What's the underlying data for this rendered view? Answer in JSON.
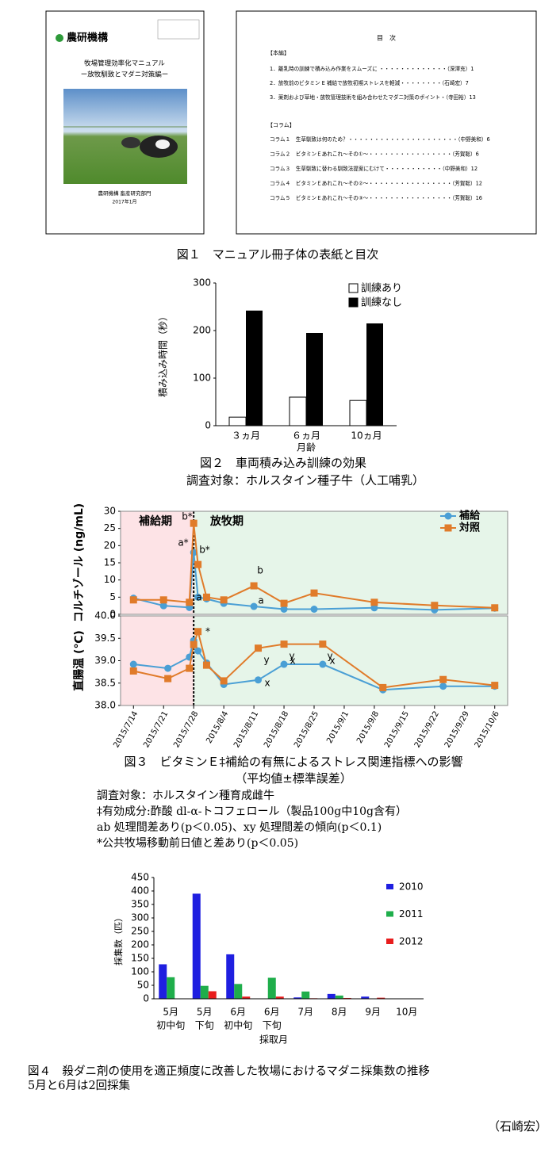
{
  "figure1": {
    "cover": {
      "logo": "農研機構",
      "title": "牧場管理効率化マニュアル",
      "subtitle": "ー放牧馴致とマダニ対策編ー",
      "publisher": "農研機構 畜産研究部門",
      "date": "2017年1月"
    },
    "toc": {
      "heading": "目　次",
      "main_heading": "【本編】",
      "main_items": [
        "1．離乳時の訓練で積み込み作業をスムーズに ・・・・・・・・・・・・・（深澤充）1",
        "2．放牧前のビタミン E 補給で放牧初期ストレスを軽減・・・・・・・・（石崎宏）7",
        "3．薬剤および草地・放牧管理技術を組み合わせたマダニ対策のポイント・（寺田裕）13"
      ],
      "column_heading": "【コラム】",
      "column_items": [
        "コラム１　生草馴致は何のため？・・・・・・・・・・・・・・・・・・・・・（中野美和）6",
        "コラム２　ビタミンＥあれこれ～その①～・・・・・・・・・・・・・・・・（芳賀聡）6",
        "コラム３　生草馴致に替わる馴致法提案にむけて・・・・・・・・・・・（中野美和）12",
        "コラム４　ビタミンＥあれこれ～その②～・・・・・・・・・・・・・・・・（芳賀聡）12",
        "コラム５　ビタミンＥあれこれ～その③～・・・・・・・・・・・・・・・・（芳賀聡）16"
      ]
    },
    "caption": "図１　マニュアル冊子体の表紙と目次"
  },
  "chart_data": [
    {
      "type": "bar",
      "y_label": "積み込み時間（秒）",
      "x_label": "月齢",
      "categories": [
        "３ヵ月",
        "６ヵ月",
        "10ヵ月"
      ],
      "series": [
        {
          "name": "訓練あり",
          "color": "#ffffff",
          "values": [
            18,
            60,
            53
          ]
        },
        {
          "name": "訓練なし",
          "color": "#000000",
          "values": [
            242,
            195,
            215
          ]
        }
      ],
      "ylim": [
        0,
        300
      ],
      "yticks": [
        0,
        100,
        200,
        300
      ],
      "legend": "upper right"
    },
    {
      "type": "line",
      "y_label": "コルチゾール (ng/mL)",
      "x": [
        "2015/7/14",
        "2015/7/21",
        "2015/7/27",
        "2015/7/28",
        "2015/7/29",
        "2015/7/31",
        "2015/8/4",
        "2015/8/11",
        "2015/8/18",
        "2015/8/25",
        "2015/9/8",
        "2015/9/22",
        "2015/10/6"
      ],
      "series": [
        {
          "name": "補給",
          "color": "#4a9fd5",
          "marker": "circle",
          "values": [
            4.7,
            2.5,
            2.0,
            18.0,
            5.0,
            4.5,
            3.2,
            2.3,
            1.5,
            1.5,
            1.9,
            1.3,
            1.8
          ]
        },
        {
          "name": "対照",
          "color": "#e07b2a",
          "marker": "square",
          "values": [
            4.2,
            4.2,
            3.5,
            26.5,
            14.5,
            5.0,
            4.2,
            8.3,
            3.2,
            6.2,
            3.5,
            2.6,
            1.9
          ]
        }
      ],
      "periods": [
        {
          "label": "補給期",
          "start": "2015/7/11",
          "end": "2015/7/28",
          "color": "#fde3e6"
        },
        {
          "label": "放牧期",
          "start": "2015/7/28",
          "end": "2015/10/9",
          "color": "#e6f5e9"
        }
      ],
      "annotations": [
        "b*",
        "a*",
        "b*",
        "a",
        "b",
        "a"
      ],
      "xlim": [
        "2015/7/11",
        "2015/10/9"
      ],
      "ylim": [
        0,
        30
      ],
      "yticks": [
        0,
        5,
        10,
        15,
        20,
        25,
        30
      ],
      "legend": "upper right"
    },
    {
      "type": "line",
      "y_label": "直腸温 (℃)",
      "x": [
        "2015/7/14",
        "2015/7/22",
        "2015/7/27",
        "2015/7/28",
        "2015/7/29",
        "2015/7/31",
        "2015/8/4",
        "2015/8/12",
        "2015/8/18",
        "2015/8/27",
        "2015/9/10",
        "2015/9/24",
        "2015/10/6"
      ],
      "series": [
        {
          "name": "補給",
          "color": "#4a9fd5",
          "marker": "circle",
          "values": [
            38.92,
            38.83,
            39.08,
            39.45,
            39.22,
            38.95,
            38.47,
            38.57,
            38.92,
            38.92,
            38.35,
            38.43,
            38.43
          ]
        },
        {
          "name": "対照",
          "color": "#e07b2a",
          "marker": "square",
          "values": [
            38.77,
            38.6,
            38.83,
            39.36,
            39.65,
            38.9,
            38.55,
            39.28,
            39.37,
            39.37,
            38.4,
            38.58,
            38.45
          ]
        }
      ],
      "periods": [
        {
          "start": "2015/7/11",
          "end": "2015/7/28",
          "color": "#fde3e6"
        },
        {
          "start": "2015/7/28",
          "end": "2015/10/9",
          "color": "#e6f5e9"
        }
      ],
      "annotations": [
        "*",
        "y",
        "y",
        "y",
        "x",
        "x",
        "x"
      ],
      "xlim": [
        "2015/7/11",
        "2015/10/9"
      ],
      "ylim": [
        38,
        40
      ],
      "yticks": [
        {
          "value": 38,
          "label": "38.0"
        },
        38.5,
        {
          "value": 39,
          "label": "39.0"
        },
        39.5,
        {
          "value": 40,
          "label": "40.0"
        }
      ],
      "xticks": [
        "2015/7/14",
        "2015/7/21",
        "2015/7/28",
        "2015/8/4",
        "2015/8/11",
        "2015/8/18",
        "2015/8/25",
        "2015/9/1",
        "2015/9/8",
        "2015/9/15",
        "2015/9/22",
        "2015/9/29",
        "2015/10/6"
      ]
    },
    {
      "type": "bar",
      "y_label": "採集数（匹）",
      "x_label": "採取月",
      "categories": [
        [
          "5月",
          "初中旬"
        ],
        [
          "5月",
          "下旬"
        ],
        [
          "6月",
          "初中旬"
        ],
        [
          "6月",
          "下旬"
        ],
        [
          "7月"
        ],
        [
          "8月"
        ],
        [
          "9月"
        ],
        [
          "10月"
        ]
      ],
      "series": [
        {
          "name": "2010",
          "color": "#1f1fe0",
          "values": [
            128,
            390,
            165,
            0,
            5,
            18,
            8,
            0
          ]
        },
        {
          "name": "2011",
          "color": "#1fae4b",
          "values": [
            80,
            48,
            55,
            78,
            27,
            12,
            0,
            0
          ]
        },
        {
          "name": "2012",
          "color": "#e81d1d",
          "values": [
            0,
            28,
            8,
            8,
            2,
            3,
            4,
            0
          ]
        }
      ],
      "ylim": [
        0,
        450
      ],
      "yticks": [
        0,
        50,
        100,
        150,
        200,
        250,
        300,
        350,
        400,
        450
      ],
      "legend": "right"
    }
  ],
  "figure2_caption": [
    "図２　車両積み込み訓練の効果",
    "調査対象：ホルスタイン種子牛（人工哺乳）"
  ],
  "figure3_caption": [
    "図３　ビタミンＥ‡補給の有無によるストレス関連指標への影響",
    "（平均値±標準誤差）",
    "調査対象：ホルスタイン種育成雌牛",
    "‡有効成分:酢酸 dl-α-トコフェロール（製品100g中10g含有）",
    "ab 処理間差あり(p＜0.05)、xy 処理間差の傾向(p＜0.1)",
    "*公共牧場移動前日値と差あり(p＜0.05)"
  ],
  "figure4_caption": [
    "図４　殺ダニ剤の使用を適正頻度に改善した牧場におけるマダニ採集数の推移",
    "5月と6月は2回採集"
  ],
  "author": "（石崎宏）"
}
